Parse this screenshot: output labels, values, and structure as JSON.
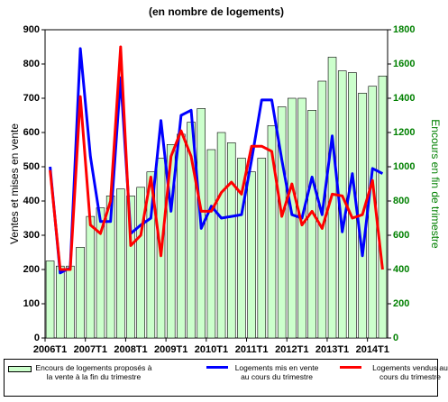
{
  "chart_data": {
    "type": "bar-line",
    "title": "(en nombre de logements)",
    "y_label": "Ventes et mises en vente",
    "y2_label": "Encours en fin de trimestre",
    "categories": [
      "2006T1",
      null,
      null,
      null,
      "2007T1",
      null,
      null,
      null,
      "2008T1",
      null,
      null,
      null,
      "2009T1",
      null,
      null,
      null,
      "2010T1",
      null,
      null,
      null,
      "2011T1",
      null,
      null,
      null,
      "2012T1",
      null,
      null,
      null,
      "2013T1",
      null,
      null,
      null,
      "2014T1",
      null
    ],
    "ylim": [
      0,
      900
    ],
    "yticks": [
      0,
      100,
      200,
      300,
      400,
      500,
      600,
      700,
      800,
      900
    ],
    "y2lim": [
      0,
      1800
    ],
    "y2ticks": [
      0,
      200,
      400,
      600,
      800,
      1000,
      1200,
      1400,
      1600,
      1800
    ],
    "series": [
      {
        "name": "Encours de logements proposés à la vente à la fin du trimestre",
        "type": "bar",
        "axis": "y2",
        "color": "#ccffcc",
        "values": [
          450,
          420,
          420,
          530,
          710,
          760,
          830,
          870,
          830,
          880,
          970,
          1050,
          1130,
          1190,
          1260,
          1340,
          1100,
          1200,
          1140,
          1050,
          970,
          1050,
          1240,
          1350,
          1400,
          1400,
          1330,
          1500,
          1640,
          1560,
          1550,
          1430,
          1470,
          1530
        ]
      },
      {
        "name": "Logements mis en vente au cours du trimestre",
        "type": "line",
        "color": "#0000ff",
        "values": [
          500,
          190,
          205,
          845,
          530,
          340,
          340,
          760,
          305,
          330,
          350,
          635,
          370,
          650,
          665,
          320,
          385,
          350,
          355,
          360,
          520,
          695,
          695,
          520,
          360,
          350,
          470,
          360,
          590,
          310,
          480,
          240,
          495,
          480
        ]
      },
      {
        "name": "Logements vendus au cours du trimestre",
        "type": "line",
        "color": "#ff0000",
        "values": [
          490,
          200,
          200,
          705,
          330,
          305,
          400,
          850,
          270,
          300,
          470,
          240,
          530,
          605,
          530,
          370,
          370,
          425,
          455,
          420,
          560,
          560,
          545,
          355,
          450,
          330,
          370,
          320,
          420,
          415,
          350,
          360,
          460,
          200
        ]
      }
    ]
  }
}
